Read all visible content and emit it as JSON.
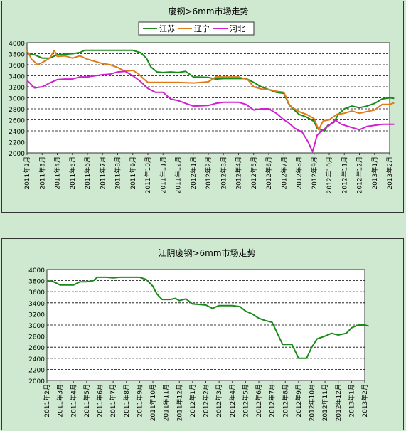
{
  "chart_data": [
    {
      "type": "line",
      "title": "废钢>6mm市场走势",
      "xlabel": "",
      "ylabel": "",
      "ylim": [
        2000,
        4000
      ],
      "yticks": [
        "4000",
        "3800",
        "3600",
        "3400",
        "3200",
        "3000",
        "2800",
        "2600",
        "2400",
        "2200",
        "2000"
      ],
      "categories": [
        "2011年2月",
        "2011年3月",
        "2011年4月",
        "2011年5月",
        "2011年6月",
        "2011年7月",
        "2011年8月",
        "2011年9月",
        "2011年10月",
        "2011年11月",
        "2011年12月",
        "2012年1月",
        "2012年2月",
        "2012年3月",
        "2012年4月",
        "2012年5月",
        "2012年6月",
        "2012年7月",
        "2012年8月",
        "2012年9月",
        "2012年10月",
        "2012年11月",
        "2012年12月",
        "2013年1月",
        "2013年2月"
      ],
      "grid": "horizontal dashed",
      "legend_position": "top-center",
      "series": [
        {
          "name": "江苏",
          "color": "#1a8a1a",
          "points": [
            [
              0,
              3800
            ],
            [
              0.5,
              3780
            ],
            [
              1,
              3720
            ],
            [
              1.5,
              3720
            ],
            [
              2,
              3780
            ],
            [
              2.5,
              3790
            ],
            [
              3,
              3800
            ],
            [
              3.5,
              3820
            ],
            [
              3.8,
              3860
            ],
            [
              4.5,
              3860
            ],
            [
              5,
              3860
            ],
            [
              6,
              3860
            ],
            [
              7,
              3860
            ],
            [
              7.5,
              3820
            ],
            [
              7.9,
              3720
            ],
            [
              8.2,
              3560
            ],
            [
              8.6,
              3470
            ],
            [
              9,
              3460
            ],
            [
              9.5,
              3470
            ],
            [
              10,
              3460
            ],
            [
              10.5,
              3480
            ],
            [
              11,
              3380
            ],
            [
              12,
              3370
            ],
            [
              12.5,
              3340
            ],
            [
              13,
              3350
            ],
            [
              14,
              3350
            ],
            [
              14.5,
              3350
            ],
            [
              15,
              3280
            ],
            [
              15.5,
              3200
            ],
            [
              16,
              3150
            ],
            [
              16.5,
              3100
            ],
            [
              17,
              3080
            ],
            [
              17.3,
              2900
            ],
            [
              17.6,
              2800
            ],
            [
              18,
              2700
            ],
            [
              18.5,
              2650
            ],
            [
              19,
              2570
            ],
            [
              19.2,
              2450
            ],
            [
              19.7,
              2400
            ],
            [
              19.9,
              2500
            ],
            [
              20.3,
              2550
            ],
            [
              20.6,
              2700
            ],
            [
              21,
              2800
            ],
            [
              21.5,
              2850
            ],
            [
              22,
              2820
            ],
            [
              22.5,
              2850
            ],
            [
              23,
              2900
            ],
            [
              23.5,
              2980
            ],
            [
              24,
              3000
            ],
            [
              24.3,
              2990
            ]
          ]
        },
        {
          "name": "辽宁",
          "color": "#e07b1a",
          "points": [
            [
              0,
              3860
            ],
            [
              0.3,
              3700
            ],
            [
              0.7,
              3600
            ],
            [
              1,
              3640
            ],
            [
              1.5,
              3720
            ],
            [
              1.8,
              3860
            ],
            [
              2,
              3750
            ],
            [
              2.5,
              3760
            ],
            [
              3,
              3720
            ],
            [
              3.5,
              3760
            ],
            [
              4,
              3700
            ],
            [
              4.5,
              3660
            ],
            [
              5,
              3620
            ],
            [
              5.5,
              3600
            ],
            [
              6,
              3550
            ],
            [
              6.5,
              3480
            ],
            [
              7,
              3500
            ],
            [
              7.4,
              3430
            ],
            [
              7.7,
              3350
            ],
            [
              8,
              3280
            ],
            [
              9,
              3280
            ],
            [
              10,
              3280
            ],
            [
              11,
              3270
            ],
            [
              12,
              3290
            ],
            [
              12.5,
              3380
            ],
            [
              13,
              3380
            ],
            [
              14,
              3380
            ],
            [
              14.6,
              3330
            ],
            [
              15,
              3200
            ],
            [
              15.5,
              3160
            ],
            [
              16,
              3150
            ],
            [
              16.5,
              3120
            ],
            [
              17,
              3100
            ],
            [
              17.4,
              2850
            ],
            [
              18,
              2750
            ],
            [
              18.5,
              2700
            ],
            [
              19,
              2620
            ],
            [
              19.3,
              2420
            ],
            [
              19.6,
              2580
            ],
            [
              20,
              2600
            ],
            [
              20.5,
              2700
            ],
            [
              21,
              2720
            ],
            [
              21.5,
              2760
            ],
            [
              22,
              2720
            ],
            [
              22.5,
              2750
            ],
            [
              23,
              2780
            ],
            [
              23.5,
              2880
            ],
            [
              24,
              2880
            ],
            [
              24.3,
              2910
            ]
          ]
        },
        {
          "name": "河北",
          "color": "#d21fd2",
          "points": [
            [
              0,
              3320
            ],
            [
              0.5,
              3180
            ],
            [
              1,
              3200
            ],
            [
              1.5,
              3270
            ],
            [
              2,
              3330
            ],
            [
              2.5,
              3340
            ],
            [
              3,
              3340
            ],
            [
              3.5,
              3380
            ],
            [
              4,
              3380
            ],
            [
              4.5,
              3400
            ],
            [
              5,
              3420
            ],
            [
              5.5,
              3430
            ],
            [
              6,
              3470
            ],
            [
              6.5,
              3480
            ],
            [
              7,
              3400
            ],
            [
              7.5,
              3300
            ],
            [
              8,
              3170
            ],
            [
              8.5,
              3100
            ],
            [
              9,
              3100
            ],
            [
              9.5,
              2980
            ],
            [
              10,
              2950
            ],
            [
              10.5,
              2900
            ],
            [
              11,
              2850
            ],
            [
              12,
              2860
            ],
            [
              12.5,
              2900
            ],
            [
              13,
              2920
            ],
            [
              14,
              2920
            ],
            [
              14.5,
              2880
            ],
            [
              15,
              2780
            ],
            [
              15.5,
              2800
            ],
            [
              16,
              2800
            ],
            [
              16.5,
              2720
            ],
            [
              17,
              2600
            ],
            [
              17.3,
              2550
            ],
            [
              17.7,
              2450
            ],
            [
              18.2,
              2380
            ],
            [
              18.6,
              2200
            ],
            [
              18.9,
              2020
            ],
            [
              19.2,
              2320
            ],
            [
              19.5,
              2400
            ],
            [
              19.8,
              2460
            ],
            [
              20,
              2500
            ],
            [
              20.4,
              2600
            ],
            [
              20.8,
              2520
            ],
            [
              21.5,
              2460
            ],
            [
              22,
              2420
            ],
            [
              22.5,
              2480
            ],
            [
              23,
              2500
            ],
            [
              23.5,
              2520
            ],
            [
              24,
              2520
            ],
            [
              24.3,
              2520
            ]
          ]
        }
      ]
    },
    {
      "type": "line",
      "title": "江阴废钢>6mm市场走势",
      "xlabel": "",
      "ylabel": "",
      "ylim": [
        2000,
        4000
      ],
      "yticks": [
        "4000",
        "3800",
        "3600",
        "3400",
        "3200",
        "3000",
        "2800",
        "2600",
        "2400",
        "2200",
        "2000"
      ],
      "categories": [
        "2011年2月",
        "2011年3月",
        "2011年4月",
        "2011年5月",
        "2011年6月",
        "2011年7月",
        "2011年8月",
        "2011年9月",
        "2011年10月",
        "2011年11月",
        "2011年12月",
        "2012年1月",
        "2012年2月",
        "2012年3月",
        "2012年4月",
        "2012年5月",
        "2012年6月",
        "2012年7月",
        "2012年8月",
        "2012年9月",
        "2012年10月",
        "2012年11月",
        "2012年12月",
        "2013年1月",
        "2013年2月"
      ],
      "grid": "horizontal dashed",
      "series": [
        {
          "name": "",
          "color": "#1a8a1a",
          "points": [
            [
              0,
              3800
            ],
            [
              0.5,
              3780
            ],
            [
              1,
              3720
            ],
            [
              2,
              3720
            ],
            [
              2.5,
              3780
            ],
            [
              3,
              3780
            ],
            [
              3.5,
              3800
            ],
            [
              3.8,
              3860
            ],
            [
              4.5,
              3860
            ],
            [
              5,
              3850
            ],
            [
              5.5,
              3860
            ],
            [
              6,
              3860
            ],
            [
              7,
              3860
            ],
            [
              7.5,
              3820
            ],
            [
              8,
              3700
            ],
            [
              8.3,
              3560
            ],
            [
              8.7,
              3460
            ],
            [
              9.3,
              3460
            ],
            [
              9.7,
              3480
            ],
            [
              10,
              3440
            ],
            [
              10.5,
              3470
            ],
            [
              11,
              3380
            ],
            [
              12,
              3360
            ],
            [
              12.5,
              3300
            ],
            [
              13,
              3350
            ],
            [
              14,
              3350
            ],
            [
              14.6,
              3330
            ],
            [
              15,
              3250
            ],
            [
              15.5,
              3200
            ],
            [
              16,
              3120
            ],
            [
              16.5,
              3080
            ],
            [
              17,
              3050
            ],
            [
              17.5,
              2800
            ],
            [
              17.8,
              2650
            ],
            [
              18.5,
              2650
            ],
            [
              19,
              2400
            ],
            [
              19.6,
              2400
            ],
            [
              20,
              2600
            ],
            [
              20.4,
              2750
            ],
            [
              21,
              2800
            ],
            [
              21.5,
              2850
            ],
            [
              22,
              2820
            ],
            [
              22.6,
              2850
            ],
            [
              23,
              2950
            ],
            [
              23.5,
              3000
            ],
            [
              24,
              3000
            ],
            [
              24.3,
              2980
            ]
          ]
        }
      ]
    }
  ]
}
